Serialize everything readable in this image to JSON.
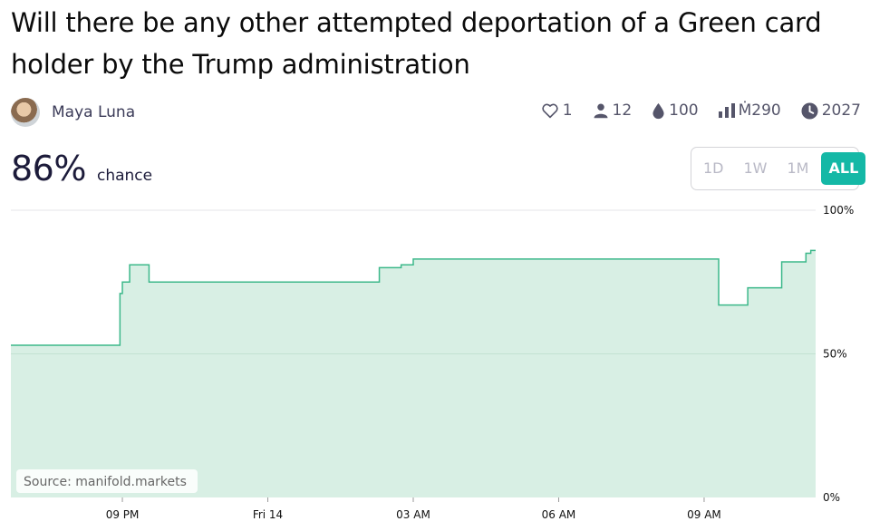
{
  "market": {
    "title": "Will there be any other attempted deportation of a Green card holder by the Trump administration",
    "author": "Maya Luna",
    "probability": "86%",
    "probability_label": "chance"
  },
  "stats": {
    "likes": "1",
    "traders": "12",
    "liquidity": "100",
    "volume": "Ṁ290",
    "close_year": "2027"
  },
  "icons": [
    "heart-icon",
    "user-icon",
    "droplet-icon",
    "bar-chart-icon",
    "clock-icon"
  ],
  "range_buttons": [
    {
      "label": "1D",
      "active": false
    },
    {
      "label": "1W",
      "active": false
    },
    {
      "label": "1M",
      "active": false
    },
    {
      "label": "ALL",
      "active": true
    }
  ],
  "colors": {
    "line": "#3cb88a",
    "fill": "#d8efe4",
    "accent": "#14b8a6"
  },
  "chart_data": {
    "type": "area",
    "step": true,
    "x_unit": "hours after 09 PM",
    "ylim": [
      0,
      100
    ],
    "y_ticks": [
      {
        "value": 0,
        "label": "0%"
      },
      {
        "value": 50,
        "label": "50%"
      },
      {
        "value": 100,
        "label": "100%"
      }
    ],
    "x_ticks": [
      {
        "value": 0,
        "label": "09 PM"
      },
      {
        "value": 3,
        "label": "Fri 14"
      },
      {
        "value": 6,
        "label": "03 AM"
      },
      {
        "value": 9,
        "label": "06 AM"
      },
      {
        "value": 12,
        "label": "09 AM"
      }
    ],
    "xlim": [
      -2.3,
      14.3
    ],
    "gridlines": [
      50,
      100
    ],
    "source": "Source: manifold.markets",
    "points": [
      {
        "x": -2.3,
        "y": 53
      },
      {
        "x": -0.05,
        "y": 71
      },
      {
        "x": 0.0,
        "y": 75
      },
      {
        "x": 0.15,
        "y": 81
      },
      {
        "x": 0.55,
        "y": 75
      },
      {
        "x": 5.3,
        "y": 80
      },
      {
        "x": 5.75,
        "y": 81
      },
      {
        "x": 6.0,
        "y": 83
      },
      {
        "x": 12.3,
        "y": 67
      },
      {
        "x": 12.9,
        "y": 73
      },
      {
        "x": 13.6,
        "y": 82
      },
      {
        "x": 14.1,
        "y": 85
      },
      {
        "x": 14.2,
        "y": 86
      }
    ]
  }
}
